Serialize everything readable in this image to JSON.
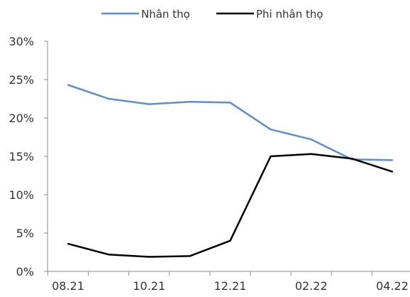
{
  "chart_data": {
    "type": "line",
    "x": [
      "08.21",
      "09.21",
      "10.21",
      "11.21",
      "12.21",
      "01.22",
      "02.22",
      "03.22",
      "04.22"
    ],
    "x_tick_labels": [
      "08.21",
      "10.21",
      "12.21",
      "02.22",
      "04.22"
    ],
    "y_tick_labels": [
      "0%",
      "5%",
      "10%",
      "15%",
      "20%",
      "25%",
      "30%"
    ],
    "ylim": [
      0,
      30
    ],
    "y_unit": "%",
    "grid": false,
    "legend_position": "top-center",
    "series": [
      {
        "name": "Nhân thọ",
        "color": "#5b8fc8",
        "values": [
          24.3,
          22.5,
          21.8,
          22.1,
          22.0,
          18.5,
          17.2,
          14.6,
          14.5
        ]
      },
      {
        "name": "Phi nhân thọ",
        "color": "#000000",
        "values": [
          3.6,
          2.2,
          1.9,
          2.0,
          4.0,
          15.0,
          15.3,
          14.7,
          13.0
        ]
      }
    ]
  }
}
